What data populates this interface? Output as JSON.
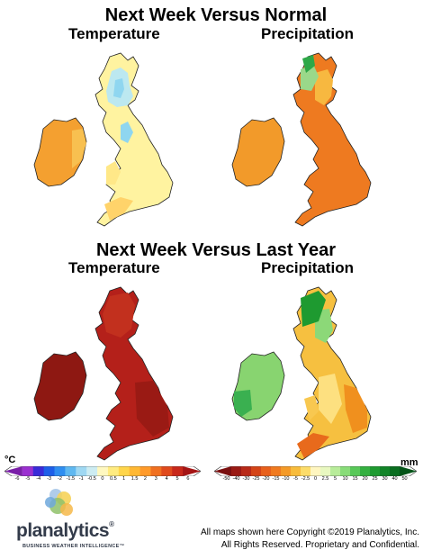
{
  "section1": {
    "title": "Next Week Versus Normal",
    "left_label": "Temperature",
    "right_label": "Precipitation"
  },
  "section2": {
    "title": "Next Week Versus Last Year",
    "left_label": "Temperature",
    "right_label": "Precipitation"
  },
  "temp_legend": {
    "unit": "°C",
    "ticks": [
      "-6",
      "-5",
      "-4",
      "-3",
      "-2",
      "-1.5",
      "-1",
      "-0.5",
      "0",
      "0.5",
      "1",
      "1.5",
      "2",
      "3",
      "4",
      "5",
      "6"
    ],
    "colors": [
      "#7a1fa8",
      "#9b30d0",
      "#3a2bd8",
      "#1e5fe8",
      "#2f8ef0",
      "#5fb8f0",
      "#9fd8f2",
      "#cdecf2",
      "#fff8c0",
      "#ffeb80",
      "#ffd54a",
      "#ffb833",
      "#ff9a2a",
      "#f07020",
      "#e04a1c",
      "#c8281a",
      "#a41414"
    ]
  },
  "precip_legend": {
    "unit": "mm",
    "ticks": [
      "-50",
      "-40",
      "-30",
      "-25",
      "-20",
      "-15",
      "-10",
      "-5",
      "-2.5",
      "0",
      "2.5",
      "5",
      "10",
      "15",
      "20",
      "25",
      "30",
      "40",
      "50"
    ],
    "colors": [
      "#7a1010",
      "#9a1a14",
      "#b82a18",
      "#d44418",
      "#e8601c",
      "#f07a20",
      "#f49a28",
      "#f8bc3c",
      "#fcdc6a",
      "#fff6c0",
      "#e8f8c0",
      "#b8ec9a",
      "#88dc78",
      "#58c858",
      "#34b040",
      "#1e9a30",
      "#128428",
      "#0a6e20",
      "#045418"
    ]
  },
  "maps": {
    "nw_temp": {
      "base": "#fff3a0",
      "ireland": "#f4a030",
      "ireland_east": "#f8c050",
      "scotland": "#bce8f0",
      "scotland_inner": "#8fd6f0",
      "england_north": "#ffed9a",
      "wales": "#ffe888",
      "sw": "#ffd36a"
    },
    "nw_precip": {
      "base": "#f28a24",
      "ireland": "#f29a2a",
      "scotland_west": "#9ad88a",
      "scotland_nw": "#2ea848",
      "scotland_east": "#f7b840",
      "england": "#ee7a20",
      "sw": "#f08a24"
    },
    "ly_temp": {
      "base": "#b4201a",
      "ireland": "#8e1812",
      "scotland": "#c2301e",
      "england_east": "#9a1a14",
      "england_west": "#a81c16"
    },
    "ly_precip": {
      "base": "#f6c040",
      "ireland": "#88d470",
      "ireland_sw": "#3ab050",
      "scotland_west": "#1e9a30",
      "scotland_east": "#8cd878",
      "england_central": "#fde080",
      "england_east": "#f0901e",
      "sw": "#e86a1c",
      "wales": "#f8c850"
    }
  },
  "brand": {
    "name": "planalytics",
    "registered": "®",
    "tagline": "BUSINESS WEATHER INTELLIGENCE™"
  },
  "copyright": {
    "line1": "All maps shown here Copyright ©2019 Planalytics, Inc.",
    "line2": "All Rights Reserved. Proprietary and Confidential."
  }
}
